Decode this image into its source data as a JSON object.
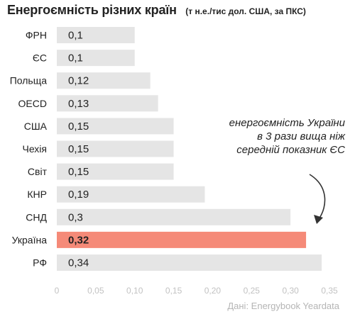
{
  "header": {
    "title": "Енергоємність різних країн",
    "subtitle": "(т н.е./тис дол. США, за ПКС)"
  },
  "annotation": {
    "lines": [
      "енергоємність України",
      "в 3 рази вища ніж",
      "середній показник ЄС"
    ]
  },
  "source": "Дані: Energybook Yeardata",
  "colors": {
    "bar": "#e5e5e5",
    "highlight": "#f58a78",
    "tick_label": "#c2c2c2"
  },
  "chart_data": {
    "type": "bar",
    "orientation": "horizontal",
    "categories": [
      "ФРН",
      "ЄС",
      "Польща",
      "OECD",
      "США",
      "Чехія",
      "Світ",
      "КНР",
      "СНД",
      "Україна",
      "РФ"
    ],
    "values": [
      0.1,
      0.1,
      0.12,
      0.13,
      0.15,
      0.15,
      0.15,
      0.19,
      0.3,
      0.32,
      0.34
    ],
    "value_labels": [
      "0,1",
      "0,1",
      "0,12",
      "0,13",
      "0,15",
      "0,15",
      "0,15",
      "0,19",
      "0,3",
      "0,32",
      "0,34"
    ],
    "highlight_category": "Україна",
    "xlim": [
      0,
      0.35
    ],
    "xticks": [
      0,
      0.05,
      0.1,
      0.15,
      0.2,
      0.25,
      0.3,
      0.35
    ],
    "xtick_labels": [
      "0",
      "0,05",
      "0,10",
      "0,15",
      "0,20",
      "0,25",
      "0,30",
      "0,35"
    ],
    "grid": false,
    "legend": "none"
  }
}
